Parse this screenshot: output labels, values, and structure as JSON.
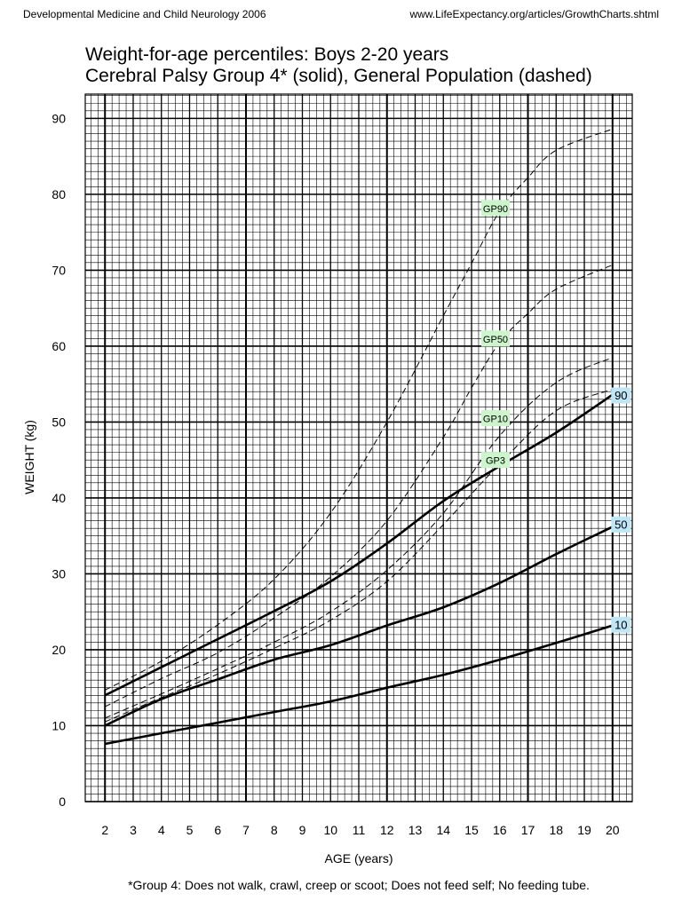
{
  "header": {
    "left": "Developmental Medicine and Child Neurology 2006",
    "right": "www.LifeExpectancy.org/articles/GrowthCharts.shtml"
  },
  "chart_data": {
    "type": "line",
    "title": "Weight-for-age percentiles: Boys 2-20 years",
    "subtitle": "Cerebral Palsy Group 4* (solid), General Population (dashed)",
    "xlabel": "AGE (years)",
    "ylabel": "WEIGHT (kg)",
    "xlim": [
      1.3,
      20.7
    ],
    "ylim": [
      0,
      90
    ],
    "x_ticks": [
      2,
      3,
      4,
      5,
      6,
      7,
      8,
      9,
      10,
      11,
      12,
      13,
      14,
      15,
      16,
      17,
      18,
      19,
      20
    ],
    "y_ticks": [
      0,
      10,
      20,
      30,
      40,
      50,
      60,
      70,
      80,
      90
    ],
    "grid": true,
    "footnote": "*Group 4: Does not walk, crawl, creep or scoot; Does not feed self; No feeding tube.",
    "colors": {
      "label_green": "#ccf5cc",
      "label_blue": "#bfe6f7",
      "line": "#000000"
    },
    "series": [
      {
        "name": "90",
        "style": "solid",
        "x": [
          2,
          4,
          6,
          8,
          10,
          12,
          14,
          16,
          18,
          20
        ],
        "y": [
          14,
          17.7,
          21.4,
          25.1,
          29,
          34,
          39.6,
          44.2,
          48.6,
          53.6
        ]
      },
      {
        "name": "50",
        "style": "solid",
        "x": [
          2,
          4,
          6,
          8,
          10,
          12,
          14,
          16,
          18,
          20
        ],
        "y": [
          10,
          13.5,
          16.1,
          18.7,
          20.6,
          23.2,
          25.6,
          28.8,
          32.6,
          36.2
        ]
      },
      {
        "name": "10",
        "style": "solid",
        "x": [
          2,
          4,
          6,
          8,
          10,
          12,
          14,
          16,
          18,
          20
        ],
        "y": [
          7.6,
          9,
          10.4,
          11.8,
          13.2,
          15,
          16.7,
          18.7,
          20.9,
          23.2
        ]
      },
      {
        "name": "GP90",
        "style": "dashed",
        "x": [
          2,
          4,
          6,
          8,
          10,
          12,
          14,
          15,
          16,
          17,
          18,
          20
        ],
        "y": [
          14.7,
          18.5,
          23.3,
          29.3,
          38,
          50,
          64,
          70.9,
          77.8,
          82.2,
          85.8,
          88.6
        ]
      },
      {
        "name": "GP50",
        "style": "dashed",
        "x": [
          2,
          4,
          6,
          8,
          10,
          12,
          14,
          15,
          16,
          17,
          18,
          20
        ],
        "y": [
          12.5,
          16.2,
          19.6,
          24.2,
          29.6,
          37,
          48,
          54.5,
          60.5,
          64.3,
          67.5,
          70.7
        ]
      },
      {
        "name": "GP10",
        "style": "dashed",
        "x": [
          2,
          4,
          6,
          8,
          10,
          12,
          14,
          16,
          18,
          20
        ],
        "y": [
          11,
          14.2,
          17.5,
          21,
          25,
          30.5,
          38,
          48.2,
          55.2,
          58.5
        ]
      },
      {
        "name": "GP3",
        "style": "dashed",
        "x": [
          2,
          4,
          6,
          8,
          10,
          12,
          14,
          16,
          18,
          20
        ],
        "y": [
          10.5,
          13.7,
          16.8,
          20.2,
          23.9,
          29,
          36.5,
          44.5,
          51.5,
          54.3
        ]
      }
    ],
    "line_labels": [
      {
        "text": "GP90",
        "x": 15.85,
        "y": 78.2,
        "color": "green"
      },
      {
        "text": "GP50",
        "x": 15.85,
        "y": 61,
        "color": "green"
      },
      {
        "text": "GP10",
        "x": 15.85,
        "y": 50.5,
        "color": "green"
      },
      {
        "text": "GP3",
        "x": 15.85,
        "y": 45,
        "color": "green"
      },
      {
        "text": "90",
        "x": 20.3,
        "y": 53.5,
        "color": "blue"
      },
      {
        "text": "50",
        "x": 20.3,
        "y": 36.5,
        "color": "blue"
      },
      {
        "text": "10",
        "x": 20.3,
        "y": 23.3,
        "color": "blue"
      }
    ]
  }
}
